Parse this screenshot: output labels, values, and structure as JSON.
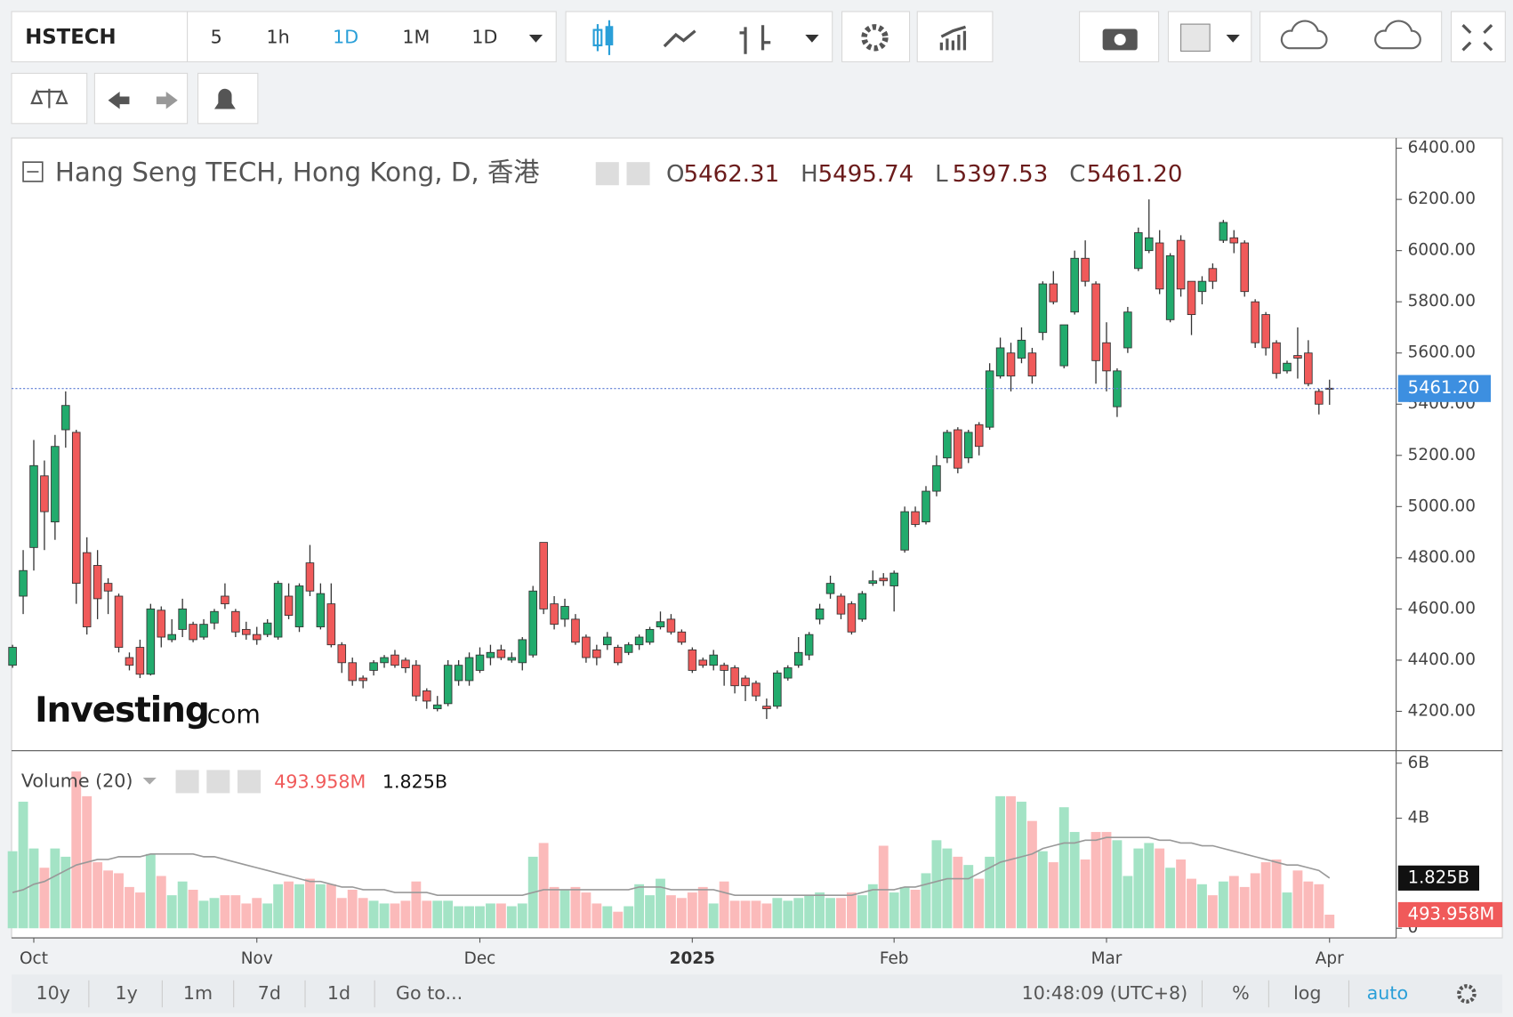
{
  "toolbar": {
    "symbol": "HSTECH",
    "intervals": [
      "5",
      "1h",
      "1D",
      "1M",
      "1D"
    ]
  },
  "chart_data": {
    "type": "candlestick",
    "title": "Hang Seng TECH, Hong Kong, D, 香港",
    "legend": [
      {
        "key": "O",
        "value": "5462.31"
      },
      {
        "key": "H",
        "value": "5495.74"
      },
      {
        "key": "L",
        "value": "5397.53"
      },
      {
        "key": "C",
        "value": "5461.20"
      }
    ],
    "last_price_label": "5461.20",
    "up_color": "#22ab6d",
    "down_color": "#f05a5a",
    "categories": [
      null,
      null,
      "Oct",
      null,
      null,
      null,
      null,
      null,
      null,
      null,
      null,
      null,
      null,
      null,
      null,
      null,
      null,
      null,
      null,
      null,
      null,
      null,
      null,
      "Nov",
      null,
      null,
      null,
      null,
      null,
      null,
      null,
      null,
      null,
      null,
      null,
      null,
      null,
      null,
      null,
      null,
      null,
      null,
      null,
      null,
      "Dec",
      null,
      null,
      null,
      null,
      null,
      null,
      null,
      null,
      null,
      null,
      null,
      null,
      null,
      null,
      null,
      null,
      null,
      null,
      null,
      "2025",
      null,
      null,
      null,
      null,
      null,
      null,
      null,
      null,
      null,
      null,
      null,
      null,
      null,
      null,
      null,
      null,
      null,
      null,
      "Feb",
      null,
      null,
      null,
      null,
      null,
      null,
      null,
      null,
      null,
      null,
      null,
      null,
      null,
      null,
      null,
      null,
      null,
      null,
      null,
      "Mar",
      null,
      null,
      null,
      null,
      null,
      null,
      null,
      null,
      null,
      null,
      null,
      null,
      null,
      null,
      null,
      null,
      null,
      null,
      null,
      null,
      "Apr"
    ],
    "ohlc": [
      [
        4380,
        4460,
        4370,
        4450
      ],
      [
        4650,
        4830,
        4580,
        4750
      ],
      [
        4840,
        5260,
        4750,
        5160
      ],
      [
        5120,
        5180,
        4830,
        4980
      ],
      [
        4940,
        5280,
        4870,
        5235
      ],
      [
        5300,
        5450,
        5230,
        5395
      ],
      [
        5290,
        5300,
        4620,
        4700
      ],
      [
        4820,
        4880,
        4500,
        4530
      ],
      [
        4770,
        4830,
        4560,
        4640
      ],
      [
        4700,
        4720,
        4580,
        4670
      ],
      [
        4650,
        4660,
        4430,
        4450
      ],
      [
        4410,
        4430,
        4360,
        4380
      ],
      [
        4450,
        4480,
        4330,
        4345
      ],
      [
        4345,
        4620,
        4340,
        4600
      ],
      [
        4595,
        4610,
        4450,
        4490
      ],
      [
        4480,
        4560,
        4470,
        4500
      ],
      [
        4520,
        4640,
        4490,
        4600
      ],
      [
        4540,
        4550,
        4470,
        4480
      ],
      [
        4490,
        4560,
        4480,
        4540
      ],
      [
        4545,
        4600,
        4520,
        4590
      ],
      [
        4650,
        4700,
        4600,
        4620
      ],
      [
        4590,
        4600,
        4490,
        4510
      ],
      [
        4520,
        4550,
        4480,
        4500
      ],
      [
        4500,
        4530,
        4460,
        4480
      ],
      [
        4500,
        4560,
        4490,
        4545
      ],
      [
        4490,
        4710,
        4480,
        4700
      ],
      [
        4650,
        4700,
        4560,
        4575
      ],
      [
        4530,
        4700,
        4510,
        4690
      ],
      [
        4780,
        4850,
        4650,
        4670
      ],
      [
        4530,
        4700,
        4520,
        4660
      ],
      [
        4620,
        4700,
        4450,
        4460
      ],
      [
        4460,
        4470,
        4350,
        4390
      ],
      [
        4390,
        4410,
        4300,
        4320
      ],
      [
        4330,
        4340,
        4290,
        4320
      ],
      [
        4360,
        4400,
        4340,
        4390
      ],
      [
        4390,
        4420,
        4370,
        4410
      ],
      [
        4420,
        4440,
        4370,
        4380
      ],
      [
        4400,
        4410,
        4350,
        4370
      ],
      [
        4380,
        4400,
        4240,
        4260
      ],
      [
        4280,
        4290,
        4210,
        4240
      ],
      [
        4210,
        4260,
        4200,
        4225
      ],
      [
        4230,
        4400,
        4220,
        4380
      ],
      [
        4320,
        4400,
        4300,
        4380
      ],
      [
        4320,
        4430,
        4300,
        4410
      ],
      [
        4360,
        4450,
        4350,
        4420
      ],
      [
        4410,
        4460,
        4380,
        4430
      ],
      [
        4440,
        4460,
        4400,
        4410
      ],
      [
        4400,
        4430,
        4390,
        4410
      ],
      [
        4390,
        4490,
        4360,
        4480
      ],
      [
        4420,
        4690,
        4410,
        4670
      ],
      [
        4860,
        4860,
        4580,
        4600
      ],
      [
        4620,
        4650,
        4520,
        4540
      ],
      [
        4560,
        4640,
        4530,
        4610
      ],
      [
        4560,
        4580,
        4460,
        4470
      ],
      [
        4490,
        4500,
        4390,
        4410
      ],
      [
        4440,
        4460,
        4380,
        4410
      ],
      [
        4460,
        4510,
        4440,
        4490
      ],
      [
        4450,
        4460,
        4380,
        4390
      ],
      [
        4430,
        4470,
        4420,
        4460
      ],
      [
        4460,
        4500,
        4440,
        4490
      ],
      [
        4470,
        4530,
        4460,
        4520
      ],
      [
        4530,
        4590,
        4520,
        4550
      ],
      [
        4560,
        4580,
        4500,
        4510
      ],
      [
        4510,
        4520,
        4460,
        4470
      ],
      [
        4440,
        4450,
        4350,
        4360
      ],
      [
        4400,
        4410,
        4370,
        4380
      ],
      [
        4380,
        4440,
        4360,
        4420
      ],
      [
        4380,
        4390,
        4300,
        4360
      ],
      [
        4370,
        4380,
        4270,
        4300
      ],
      [
        4330,
        4340,
        4240,
        4300
      ],
      [
        4310,
        4320,
        4240,
        4260
      ],
      [
        4220,
        4250,
        4170,
        4210
      ],
      [
        4220,
        4360,
        4210,
        4350
      ],
      [
        4330,
        4380,
        4320,
        4370
      ],
      [
        4380,
        4490,
        4370,
        4430
      ],
      [
        4420,
        4510,
        4400,
        4500
      ],
      [
        4560,
        4620,
        4540,
        4600
      ],
      [
        4660,
        4730,
        4640,
        4700
      ],
      [
        4650,
        4660,
        4560,
        4580
      ],
      [
        4620,
        4630,
        4500,
        4510
      ],
      [
        4560,
        4670,
        4550,
        4660
      ],
      [
        4700,
        4750,
        4690,
        4710
      ],
      [
        4720,
        4740,
        4690,
        4710
      ],
      [
        4690,
        4750,
        4590,
        4740
      ],
      [
        4830,
        5000,
        4820,
        4980
      ],
      [
        4980,
        5000,
        4920,
        4930
      ],
      [
        4940,
        5080,
        4930,
        5060
      ],
      [
        5060,
        5200,
        5040,
        5160
      ],
      [
        5190,
        5300,
        5170,
        5290
      ],
      [
        5300,
        5310,
        5130,
        5150
      ],
      [
        5190,
        5300,
        5170,
        5290
      ],
      [
        5320,
        5330,
        5200,
        5235
      ],
      [
        5310,
        5560,
        5300,
        5530
      ],
      [
        5510,
        5660,
        5500,
        5620
      ],
      [
        5600,
        5640,
        5450,
        5510
      ],
      [
        5580,
        5700,
        5560,
        5650
      ],
      [
        5600,
        5620,
        5480,
        5510
      ],
      [
        5680,
        5880,
        5650,
        5870
      ],
      [
        5870,
        5920,
        5790,
        5800
      ],
      [
        5550,
        5710,
        5540,
        5710
      ],
      [
        5760,
        6000,
        5750,
        5970
      ],
      [
        5970,
        6040,
        5860,
        5880
      ],
      [
        5870,
        5880,
        5480,
        5570
      ],
      [
        5640,
        5720,
        5450,
        5530
      ],
      [
        5390,
        5540,
        5350,
        5530
      ],
      [
        5620,
        5780,
        5600,
        5760
      ],
      [
        5930,
        6090,
        5920,
        6070
      ],
      [
        6000,
        6200,
        5990,
        6050
      ],
      [
        6030,
        6080,
        5830,
        5850
      ],
      [
        5730,
        5990,
        5720,
        5980
      ],
      [
        6040,
        6060,
        5820,
        5850
      ],
      [
        5880,
        5880,
        5670,
        5750
      ],
      [
        5840,
        5900,
        5790,
        5880
      ],
      [
        5930,
        5950,
        5850,
        5880
      ],
      [
        6040,
        6120,
        6030,
        6110
      ],
      [
        6050,
        6080,
        5990,
        6030
      ],
      [
        6030,
        6040,
        5820,
        5840
      ],
      [
        5800,
        5810,
        5620,
        5640
      ],
      [
        5750,
        5760,
        5590,
        5620
      ],
      [
        5640,
        5650,
        5500,
        5520
      ],
      [
        5530,
        5570,
        5520,
        5560
      ],
      [
        5590,
        5700,
        5500,
        5580
      ],
      [
        5600,
        5650,
        5470,
        5480
      ],
      [
        5450,
        5460,
        5360,
        5400
      ],
      [
        5462.31,
        5495.74,
        5397.53,
        5461.2
      ]
    ],
    "ylim": [
      4050,
      6440
    ],
    "yticks": [
      {
        "value": 6400,
        "label": "6400.00"
      },
      {
        "value": 6200,
        "label": "6200.00"
      },
      {
        "value": 6000,
        "label": "6000.00"
      },
      {
        "value": 5800,
        "label": "5800.00"
      },
      {
        "value": 5600,
        "label": "5600.00"
      },
      {
        "value": 5400,
        "label": "5400.00"
      },
      {
        "value": 5200,
        "label": "5200.00"
      },
      {
        "value": 5000,
        "label": "5000.00"
      },
      {
        "value": 4800,
        "label": "4800.00"
      },
      {
        "value": 4600,
        "label": "4600.00"
      },
      {
        "value": 4400,
        "label": "4400.00"
      },
      {
        "value": 4200,
        "label": "4200.00"
      }
    ],
    "volume": {
      "name": "Volume (20)",
      "last_label": "493.958M",
      "ma_label": "1.825B",
      "ma_color": "#999999",
      "values": [
        2.8,
        4.6,
        2.9,
        2.2,
        2.9,
        2.6,
        5.7,
        4.8,
        2.4,
        2.1,
        2.0,
        1.5,
        1.3,
        2.7,
        1.9,
        1.2,
        1.7,
        1.4,
        1.0,
        1.1,
        1.2,
        1.2,
        0.9,
        1.1,
        0.9,
        1.6,
        1.7,
        1.6,
        1.8,
        1.6,
        1.6,
        1.1,
        1.4,
        1.1,
        1.0,
        0.9,
        0.9,
        1.0,
        1.7,
        1.0,
        1.0,
        1.0,
        0.8,
        0.8,
        0.8,
        0.9,
        0.9,
        0.8,
        0.9,
        2.6,
        3.1,
        1.5,
        1.4,
        1.5,
        1.3,
        0.9,
        0.8,
        0.6,
        0.8,
        1.6,
        1.2,
        1.8,
        1.2,
        1.1,
        1.3,
        1.5,
        0.9,
        1.7,
        1.0,
        1.0,
        1.0,
        0.9,
        1.1,
        1.0,
        1.1,
        1.2,
        1.3,
        1.1,
        1.1,
        1.3,
        1.2,
        1.6,
        3.0,
        1.3,
        1.5,
        1.4,
        2.0,
        3.2,
        2.9,
        2.6,
        2.3,
        1.8,
        2.6,
        4.8,
        4.8,
        4.6,
        3.9,
        2.8,
        2.4,
        4.4,
        3.5,
        2.5,
        3.5,
        3.5,
        3.2,
        1.9,
        2.9,
        3.1,
        2.9,
        2.2,
        2.5,
        1.8,
        1.6,
        1.2,
        1.7,
        1.9,
        1.5,
        2.0,
        2.4,
        2.5,
        1.3,
        2.1,
        1.7,
        1.6,
        0.493958
      ],
      "ma": [
        1.3,
        1.4,
        1.6,
        1.7,
        1.9,
        2.1,
        2.3,
        2.4,
        2.5,
        2.5,
        2.6,
        2.6,
        2.6,
        2.7,
        2.7,
        2.7,
        2.7,
        2.7,
        2.6,
        2.6,
        2.5,
        2.4,
        2.3,
        2.2,
        2.1,
        2.0,
        1.9,
        1.8,
        1.7,
        1.7,
        1.6,
        1.5,
        1.5,
        1.4,
        1.4,
        1.4,
        1.3,
        1.3,
        1.3,
        1.3,
        1.2,
        1.2,
        1.2,
        1.2,
        1.2,
        1.2,
        1.2,
        1.2,
        1.2,
        1.3,
        1.4,
        1.4,
        1.4,
        1.4,
        1.4,
        1.4,
        1.4,
        1.4,
        1.4,
        1.5,
        1.5,
        1.5,
        1.4,
        1.4,
        1.4,
        1.4,
        1.4,
        1.3,
        1.2,
        1.2,
        1.2,
        1.2,
        1.2,
        1.2,
        1.2,
        1.2,
        1.2,
        1.2,
        1.2,
        1.2,
        1.3,
        1.4,
        1.4,
        1.4,
        1.5,
        1.5,
        1.6,
        1.7,
        1.8,
        1.8,
        1.8,
        2.0,
        2.2,
        2.4,
        2.5,
        2.6,
        2.7,
        2.9,
        3.0,
        3.1,
        3.1,
        3.2,
        3.2,
        3.3,
        3.3,
        3.3,
        3.3,
        3.3,
        3.2,
        3.2,
        3.1,
        3.1,
        3.0,
        3.0,
        2.9,
        2.8,
        2.7,
        2.6,
        2.5,
        2.4,
        2.3,
        2.3,
        2.2,
        2.1,
        1.825
      ],
      "ylim": [
        -0.35,
        6.42
      ],
      "yticks": [
        {
          "value": 6,
          "label": "6B"
        },
        {
          "value": 4,
          "label": "4B"
        },
        0
      ]
    }
  },
  "watermark": {
    "brand": "Investing",
    "suffix": ".com"
  },
  "bottom_bar": {
    "ranges": [
      "10y",
      "1y",
      "1m",
      "7d",
      "1d"
    ],
    "goto": "Go to...",
    "time": "10:48:09 (UTC+8)",
    "options": [
      "%",
      "log",
      "auto"
    ]
  }
}
